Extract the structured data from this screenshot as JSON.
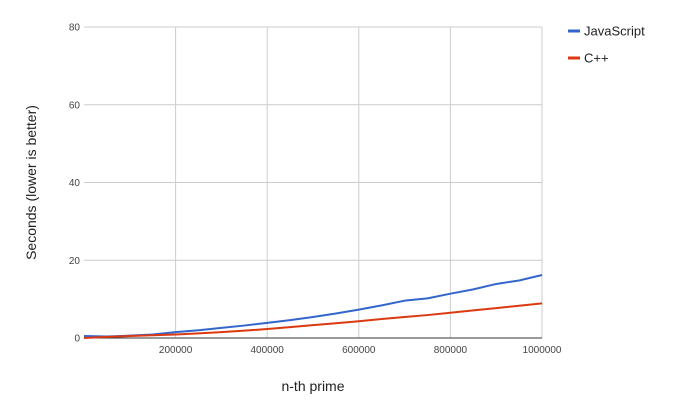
{
  "chart_data": {
    "type": "line",
    "title": "",
    "xlabel": "n-th prime",
    "ylabel": "Seconds (lower is better)",
    "xlim": [
      0,
      1000000
    ],
    "ylim": [
      0,
      80
    ],
    "x_ticks": [
      200000,
      400000,
      600000,
      800000,
      1000000
    ],
    "x_tick_labels": [
      "200000",
      "400000",
      "600000",
      "800000",
      "1000000"
    ],
    "y_ticks": [
      0,
      20,
      40,
      60,
      80
    ],
    "y_tick_labels": [
      "0",
      "20",
      "40",
      "60",
      "80"
    ],
    "grid": true,
    "legend_position": "top-right",
    "colors": {
      "JavaScript": "#3366cc",
      "C++": "#dc3912"
    },
    "x": [
      0,
      50000,
      100000,
      150000,
      200000,
      250000,
      300000,
      350000,
      400000,
      450000,
      500000,
      550000,
      600000,
      650000,
      700000,
      750000,
      800000,
      850000,
      900000,
      950000,
      1000000
    ],
    "series": [
      {
        "name": "JavaScript",
        "values": [
          0.5,
          0.4,
          0.6,
          0.9,
          1.5,
          2.0,
          2.6,
          3.2,
          3.9,
          4.6,
          5.4,
          6.3,
          7.3,
          8.4,
          9.6,
          10.2,
          11.4,
          12.5,
          13.9,
          14.8,
          16.2
        ]
      },
      {
        "name": "C++",
        "values": [
          0.0,
          0.3,
          0.5,
          0.7,
          0.9,
          1.2,
          1.5,
          1.9,
          2.3,
          2.8,
          3.3,
          3.8,
          4.3,
          4.9,
          5.4,
          5.9,
          6.5,
          7.1,
          7.7,
          8.3,
          8.9
        ]
      }
    ]
  }
}
